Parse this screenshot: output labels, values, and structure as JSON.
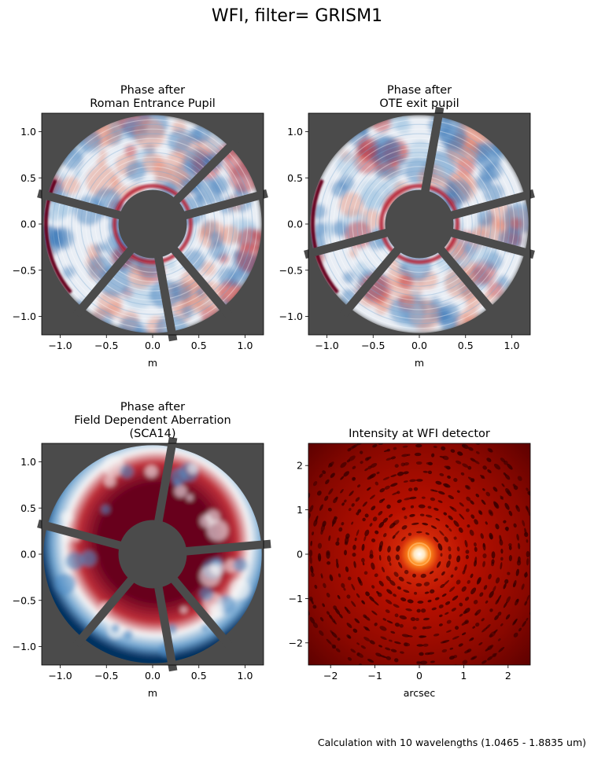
{
  "figure": {
    "suptitle": "WFI, filter= GRISM1",
    "footnote": "Calculation with 10 wavelengths (1.0465 - 1.8835 um)"
  },
  "colors": {
    "mask": "#4b4b4b",
    "deep_red": "#67001f",
    "red": "#c0303a",
    "white": "#f7f7f7",
    "blue": "#2c6fb0",
    "deep_blue": "#053061",
    "psf_core": "#ffffff",
    "psf_hot": "#ff8c1a",
    "psf_red": "#c81400",
    "psf_dark": "#3a0000"
  },
  "chart_data": [
    {
      "type": "heatmap",
      "id": "p1",
      "title": [
        "Phase after",
        "Roman Entrance Pupil"
      ],
      "xlabel": "m",
      "ylabel": "",
      "xlim": [
        -1.2,
        1.2
      ],
      "ylim": [
        -1.2,
        1.2
      ],
      "xticks": [
        -1.0,
        -0.5,
        0.0,
        0.5,
        1.0
      ],
      "xtick_labels": [
        "−1.0",
        "−0.5",
        "0.0",
        "0.5",
        "1.0"
      ],
      "yticks": [
        1.0,
        0.5,
        0.0,
        -0.5,
        -1.0
      ],
      "ytick_labels": [
        "1.0",
        "0.5",
        "0.0",
        "−0.5",
        "−1.0"
      ],
      "pupil": {
        "outer_radius": 1.18,
        "inner_radius": 0.37,
        "strut_width": 0.09,
        "strut_angles_deg": [
          15,
          45,
          165,
          230,
          280,
          310
        ]
      },
      "pattern": "mixed"
    },
    {
      "type": "heatmap",
      "id": "p2",
      "title": [
        "Phase after",
        "OTE exit pupil"
      ],
      "xlabel": "m",
      "ylabel": "",
      "xlim": [
        -1.2,
        1.2
      ],
      "ylim": [
        -1.2,
        1.2
      ],
      "xticks": [
        -1.0,
        -0.5,
        0.0,
        0.5,
        1.0
      ],
      "xtick_labels": [
        "−1.0",
        "−0.5",
        "0.0",
        "0.5",
        "1.0"
      ],
      "yticks": [
        1.0,
        0.5,
        0.0,
        -0.5,
        -1.0
      ],
      "ytick_labels": [
        "1.0",
        "0.5",
        "0.0",
        "−0.5",
        "−1.0"
      ],
      "pupil": {
        "outer_radius": 1.18,
        "inner_radius": 0.37,
        "strut_width": 0.09,
        "strut_angles_deg": [
          15,
          80,
          195,
          230,
          310,
          345
        ]
      },
      "pattern": "mixed"
    },
    {
      "type": "heatmap",
      "id": "p3",
      "title": [
        "Phase after",
        "Field Dependent Aberration",
        "(SCA14)"
      ],
      "xlabel": "m",
      "ylabel": "",
      "xlim": [
        -1.2,
        1.2
      ],
      "ylim": [
        -1.2,
        1.2
      ],
      "xticks": [
        -1.0,
        -0.5,
        0.0,
        0.5,
        1.0
      ],
      "xtick_labels": [
        "−1.0",
        "−0.5",
        "0.0",
        "0.5",
        "1.0"
      ],
      "yticks": [
        1.0,
        0.5,
        0.0,
        -0.5,
        -1.0
      ],
      "ytick_labels": [
        "1.0",
        "0.5",
        "0.0",
        "−0.5",
        "−1.0"
      ],
      "pupil": {
        "outer_radius": 1.18,
        "inner_radius": 0.37,
        "strut_width": 0.09,
        "strut_angles_deg": [
          80,
          5,
          165,
          230,
          280,
          310
        ]
      },
      "pattern": "radial"
    },
    {
      "type": "heatmap",
      "id": "p4",
      "title": [
        "Intensity at WFI detector"
      ],
      "xlabel": "arcsec",
      "ylabel": "",
      "xlim": [
        -2.5,
        2.5
      ],
      "ylim": [
        -2.5,
        2.5
      ],
      "xticks": [
        -2,
        -1,
        0,
        1,
        2
      ],
      "xtick_labels": [
        "−2",
        "−1",
        "0",
        "1",
        "2"
      ],
      "yticks": [
        2,
        1,
        0,
        -1,
        -2
      ],
      "ytick_labels": [
        "2",
        "1",
        "0",
        "−1",
        "−2"
      ],
      "pattern": "psf"
    }
  ]
}
